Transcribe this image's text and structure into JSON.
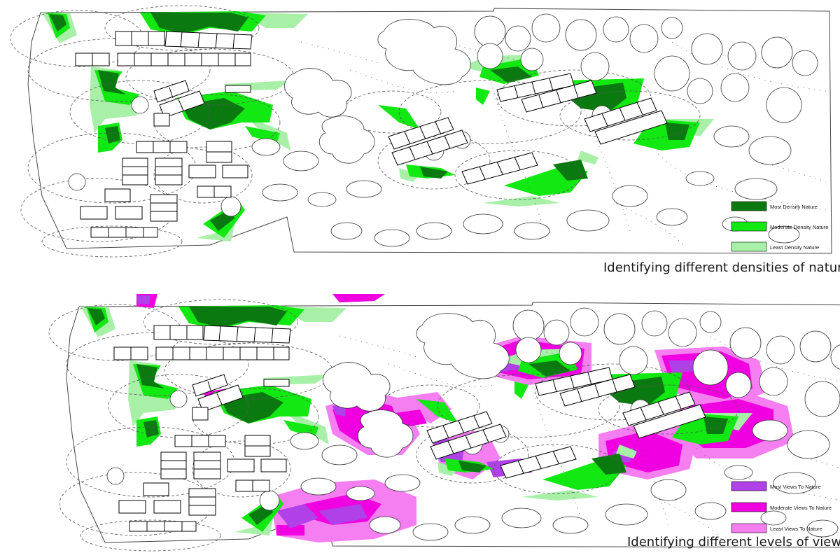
{
  "colors": {
    "most_density_nature": "#0a7a10",
    "moderate_density_nature": "#12e812",
    "least_density_nature": "#a8f0a8",
    "most_views": "#b040e8",
    "moderate_views": "#f000e0",
    "least_views": "#f57ef0",
    "outline": "#444444",
    "building_stroke": "#000000"
  },
  "panels": [
    {
      "id": "density",
      "caption": "Identifying different densities of nature",
      "legend": [
        {
          "label": "Most Density Nature",
          "color": "#0a7a10"
        },
        {
          "label": "Moderate Density Nature",
          "color": "#12e812"
        },
        {
          "label": "Least Density Nature",
          "color": "#a8f0a8"
        }
      ]
    },
    {
      "id": "views",
      "caption": "Identifying different levels of views",
      "legend": [
        {
          "label": "Most Views To Nature",
          "color": "#b040e8"
        },
        {
          "label": "Moderate Views To Nature",
          "color": "#f000e0"
        },
        {
          "label": "Least Views To Nature",
          "color": "#f57ef0"
        }
      ]
    }
  ]
}
